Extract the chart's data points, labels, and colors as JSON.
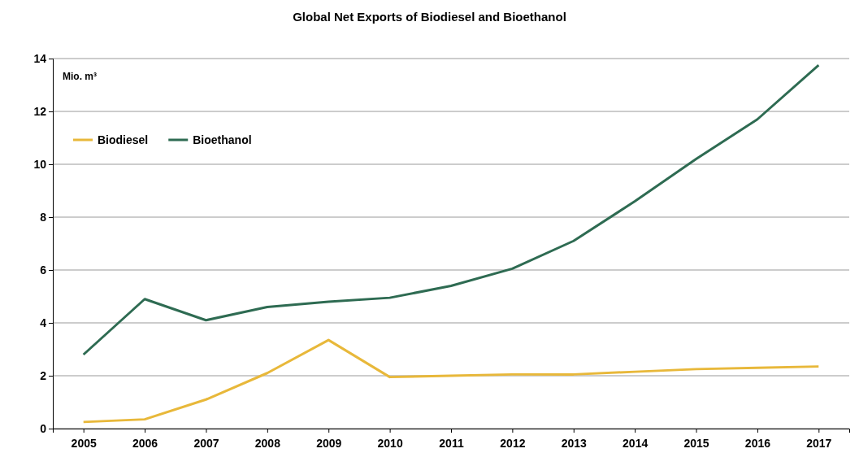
{
  "chart_data": {
    "type": "line",
    "title": "Global Net Exports of Biodiesel and Bioethanol",
    "ylabel": "Mio. m³",
    "categories": [
      "2005",
      "2006",
      "2007",
      "2008",
      "2009",
      "2010",
      "2011",
      "2012",
      "2013",
      "2014",
      "2015",
      "2016",
      "2017"
    ],
    "series": [
      {
        "name": "Biodiesel",
        "color": "#e8b83a",
        "values": [
          0.25,
          0.35,
          1.1,
          2.1,
          3.35,
          1.95,
          2.0,
          2.05,
          2.05,
          2.15,
          2.25,
          2.3,
          2.35
        ]
      },
      {
        "name": "Bioethanol",
        "color": "#2e6b52",
        "values": [
          2.8,
          4.9,
          4.1,
          4.6,
          4.8,
          4.95,
          5.4,
          6.05,
          7.1,
          8.6,
          10.2,
          11.7,
          13.75
        ]
      }
    ],
    "ylim": [
      0,
      14
    ],
    "yticks": [
      0,
      2,
      4,
      6,
      8,
      10,
      12,
      14
    ],
    "grid": "y",
    "legend": "top left",
    "marker": "none",
    "line_style": "solid"
  }
}
